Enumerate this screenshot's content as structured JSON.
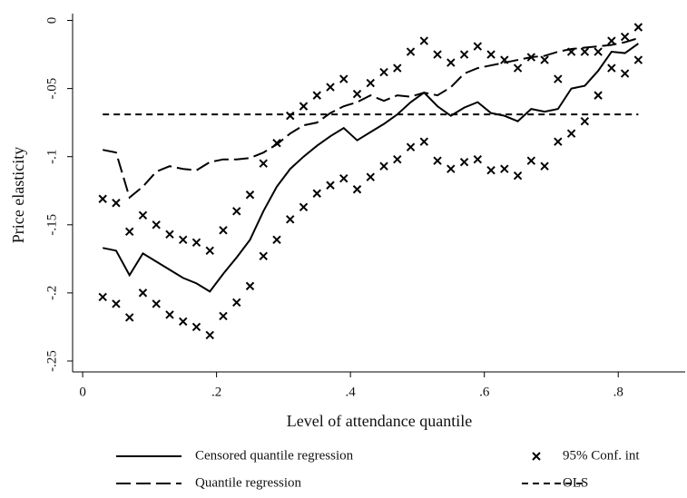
{
  "chart_data": {
    "type": "line",
    "xlabel": "Level of attendance quantile",
    "ylabel": "Price elasticity",
    "xlim": [
      -0.015,
      0.9
    ],
    "ylim": [
      -0.258,
      0.005
    ],
    "xticks": [
      0,
      {
        "value": 0.2,
        "label": ".2"
      },
      {
        "value": 0.4,
        "label": ".4"
      },
      {
        "value": 0.6,
        "label": ".6"
      },
      {
        "value": 0.8,
        "label": ".8"
      }
    ],
    "yticks": [
      0,
      {
        "value": -0.05,
        "label": "-.05"
      },
      {
        "value": -0.1,
        "label": "-.1"
      },
      {
        "value": -0.15,
        "label": "-.15"
      },
      {
        "value": -0.2,
        "label": "-.2"
      },
      {
        "value": -0.25,
        "label": "-.25"
      }
    ],
    "x": [
      0.03,
      0.05,
      0.07,
      0.09,
      0.11,
      0.13,
      0.15,
      0.17,
      0.19,
      0.21,
      0.23,
      0.25,
      0.27,
      0.29,
      0.31,
      0.33,
      0.35,
      0.37,
      0.39,
      0.41,
      0.43,
      0.45,
      0.47,
      0.49,
      0.51,
      0.53,
      0.55,
      0.57,
      0.59,
      0.61,
      0.63,
      0.65,
      0.67,
      0.69,
      0.71,
      0.73,
      0.75,
      0.77,
      0.79,
      0.81,
      0.83
    ],
    "series": [
      {
        "name": "Censored quantile regression",
        "color": "#000000",
        "line_style": "solid",
        "values": [
          -0.167,
          -0.169,
          -0.187,
          -0.171,
          -0.177,
          -0.183,
          -0.189,
          -0.193,
          -0.199,
          -0.186,
          -0.174,
          -0.161,
          -0.14,
          -0.122,
          -0.109,
          -0.1,
          -0.092,
          -0.085,
          -0.079,
          -0.088,
          -0.082,
          -0.076,
          -0.069,
          -0.06,
          -0.053,
          -0.063,
          -0.07,
          -0.064,
          -0.06,
          -0.068,
          -0.07,
          -0.074,
          -0.065,
          -0.067,
          -0.065,
          -0.05,
          -0.048,
          -0.037,
          -0.023,
          -0.024,
          -0.017
        ]
      },
      {
        "name": "95% Conf. int",
        "color": "#000000",
        "line_style": "marker",
        "upper": [
          -0.131,
          -0.134,
          -0.155,
          -0.143,
          -0.15,
          -0.157,
          -0.161,
          -0.163,
          -0.169,
          -0.154,
          -0.14,
          -0.128,
          -0.105,
          -0.09,
          -0.07,
          -0.063,
          -0.055,
          -0.049,
          -0.043,
          -0.054,
          -0.046,
          -0.038,
          -0.035,
          -0.023,
          -0.015,
          -0.025,
          -0.031,
          -0.025,
          -0.019,
          -0.025,
          -0.029,
          -0.035,
          -0.027,
          -0.029,
          -0.043,
          -0.023,
          -0.023,
          -0.023,
          -0.015,
          -0.012,
          -0.005
        ],
        "lower": [
          -0.203,
          -0.208,
          -0.218,
          -0.2,
          -0.208,
          -0.216,
          -0.221,
          -0.225,
          -0.231,
          -0.217,
          -0.207,
          -0.195,
          -0.173,
          -0.161,
          -0.146,
          -0.137,
          -0.127,
          -0.121,
          -0.116,
          -0.124,
          -0.115,
          -0.107,
          -0.102,
          -0.093,
          -0.089,
          -0.103,
          -0.109,
          -0.104,
          -0.102,
          -0.11,
          -0.109,
          -0.114,
          -0.103,
          -0.107,
          -0.089,
          -0.083,
          -0.074,
          -0.055,
          -0.035,
          -0.039,
          -0.029
        ]
      },
      {
        "name": "Quantile regression",
        "color": "#000000",
        "line_style": "long-dash",
        "values": [
          -0.095,
          -0.097,
          -0.13,
          -0.122,
          -0.111,
          -0.107,
          -0.109,
          -0.11,
          -0.104,
          -0.102,
          -0.102,
          -0.101,
          -0.097,
          -0.091,
          -0.083,
          -0.077,
          -0.075,
          -0.068,
          -0.063,
          -0.06,
          -0.055,
          -0.059,
          -0.055,
          -0.056,
          -0.053,
          -0.055,
          -0.049,
          -0.039,
          -0.035,
          -0.033,
          -0.031,
          -0.029,
          -0.027,
          -0.026,
          -0.023,
          -0.021,
          -0.02,
          -0.019,
          -0.018,
          -0.016,
          -0.013
        ]
      },
      {
        "name": "OLS",
        "color": "#000000",
        "line_style": "short-dash",
        "x": [
          0.03,
          0.83
        ],
        "values": [
          -0.069,
          -0.069
        ]
      }
    ]
  }
}
